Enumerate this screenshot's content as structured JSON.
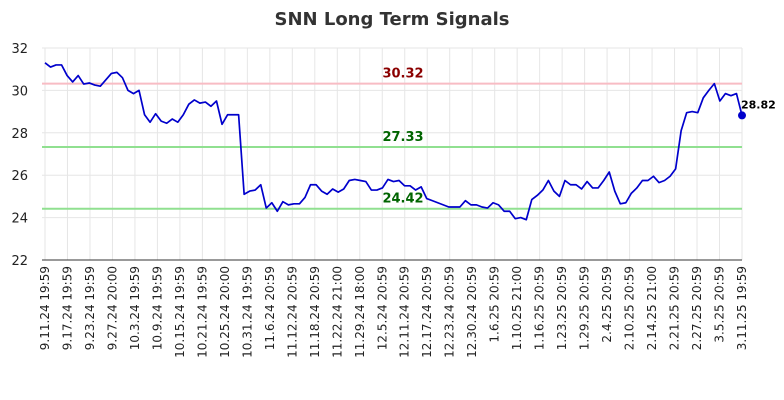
{
  "chart_data": {
    "type": "line",
    "title": "SNN Long Term Signals",
    "xlabel": "",
    "ylabel": "",
    "ylim": [
      22,
      32
    ],
    "yticks": [
      22,
      24,
      26,
      28,
      30,
      32
    ],
    "grid": true,
    "x_tick_labels": [
      "9.11.24 19:59",
      "9.17.24 19:59",
      "9.23.24 19:59",
      "9.27.24 20:00",
      "10.3.24 19:59",
      "10.9.24 19:59",
      "10.15.24 19:59",
      "10.21.24 19:59",
      "10.25.24 20:00",
      "10.31.24 19:59",
      "11.6.24 20:59",
      "11.12.24 20:59",
      "11.18.24 20:59",
      "11.22.24 21:00",
      "11.29.24 18:00",
      "12.5.24 20:59",
      "12.11.24 20:59",
      "12.17.24 20:59",
      "12.23.24 20:59",
      "12.30.24 20:59",
      "1.6.25 20:59",
      "1.10.25 21:00",
      "1.16.25 20:59",
      "1.23.25 20:59",
      "1.29.25 20:59",
      "2.4.25 20:59",
      "2.10.25 20:59",
      "2.14.25 21:00",
      "2.21.25 20:59",
      "2.27.25 20:59",
      "3.5.25 20:59",
      "3.11.25 19:59"
    ],
    "series": [
      {
        "values": [
          31.3,
          31.1,
          31.2,
          31.2,
          30.7,
          30.4,
          30.7,
          30.3,
          30.35,
          30.25,
          30.2,
          30.5,
          30.8,
          30.85,
          30.6,
          30.0,
          29.85,
          30.0,
          28.85,
          28.5,
          28.9,
          28.55,
          28.45,
          28.65,
          28.5,
          28.85,
          29.35,
          29.55,
          29.4,
          29.45,
          29.25,
          29.5,
          28.4,
          28.85,
          28.85,
          28.85,
          25.1,
          25.25,
          25.3,
          25.55,
          24.45,
          24.7,
          24.3,
          24.75,
          24.6,
          24.65,
          24.65,
          24.95,
          25.55,
          25.55,
          25.25,
          25.1,
          25.35,
          25.2,
          25.35,
          25.75,
          25.8,
          25.75,
          25.7,
          25.3,
          25.3,
          25.4,
          25.8,
          25.7,
          25.75,
          25.5,
          25.5,
          25.3,
          25.45,
          24.9,
          24.8,
          24.7,
          24.6,
          24.5,
          24.5,
          24.5,
          24.8,
          24.6,
          24.6,
          24.5,
          24.45,
          24.7,
          24.6,
          24.3,
          24.3,
          23.95,
          24.0,
          23.9,
          24.85,
          25.05,
          25.3,
          25.75,
          25.25,
          25.0,
          25.75,
          25.55,
          25.55,
          25.35,
          25.7,
          25.4,
          25.4,
          25.75,
          26.15,
          25.25,
          24.65,
          24.7,
          25.15,
          25.4,
          25.75,
          25.75,
          25.95,
          25.65,
          25.75,
          25.95,
          26.3,
          28.1,
          28.95,
          29.0,
          28.95,
          29.65,
          30.0,
          30.32,
          29.5,
          29.85,
          29.75,
          29.85,
          28.82
        ]
      }
    ],
    "levels": [
      {
        "value": 30.32,
        "label": "30.32",
        "line_color": "#f8bcc4",
        "text_color": "#8b0000"
      },
      {
        "value": 27.33,
        "label": "27.33",
        "line_color": "#90e090",
        "text_color": "#006400"
      },
      {
        "value": 24.42,
        "label": "24.42",
        "line_color": "#90e090",
        "text_color": "#006400"
      }
    ],
    "last_point_label": "28.82",
    "line_color": "#0000cc"
  }
}
